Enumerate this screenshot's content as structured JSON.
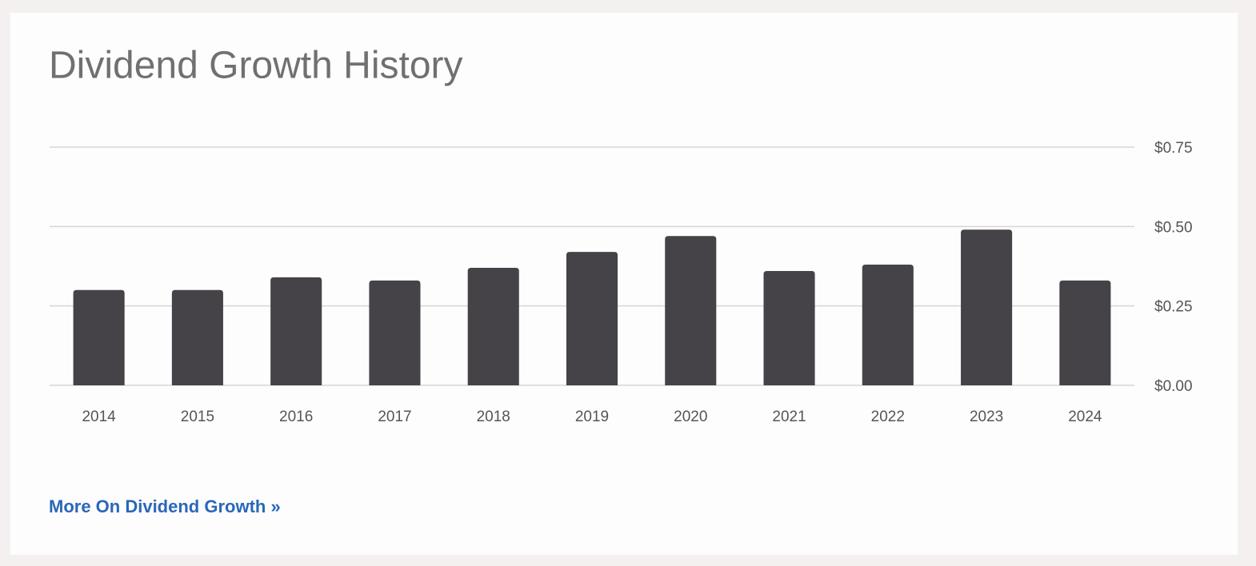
{
  "chart_data": {
    "type": "bar",
    "title": "Dividend Growth History",
    "categories": [
      "2014",
      "2015",
      "2016",
      "2017",
      "2018",
      "2019",
      "2020",
      "2021",
      "2022",
      "2023",
      "2024"
    ],
    "values": [
      0.3,
      0.3,
      0.34,
      0.33,
      0.37,
      0.42,
      0.47,
      0.36,
      0.38,
      0.49,
      0.33
    ],
    "color": "#454347",
    "ylim": [
      0,
      0.75
    ],
    "yticks": [
      {
        "value": 0,
        "label": "$0.00"
      },
      {
        "value": 0.25,
        "label": "$0.25"
      },
      {
        "value": 0.5,
        "label": "$0.50"
      },
      {
        "value": 0.75,
        "label": "$0.75"
      }
    ],
    "grid": true
  },
  "link": "More On Dividend Growth »"
}
